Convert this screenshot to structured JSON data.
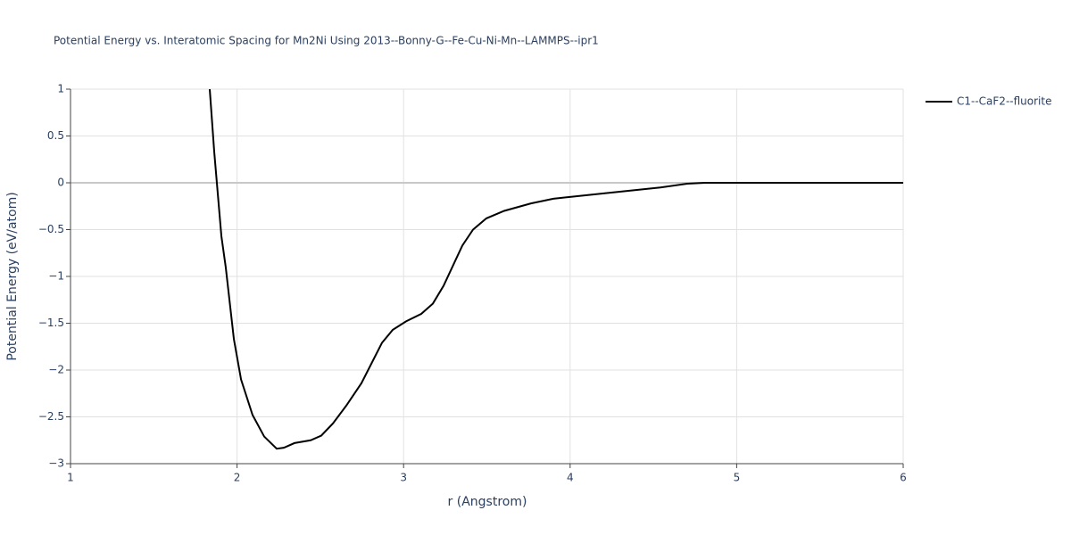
{
  "chart_data": {
    "type": "line",
    "title": "Potential Energy vs. Interatomic Spacing for Mn2Ni Using 2013--Bonny-G--Fe-Cu-Ni-Mn--LAMMPS--ipr1",
    "x_label": "r (Angstrom)",
    "y_label": "Potential Energy (eV/atom)",
    "xlim": [
      1,
      6
    ],
    "xticks": [
      1,
      2,
      3,
      4,
      5,
      6
    ],
    "ylim": [
      -3,
      1
    ],
    "yticks": [
      {
        "value": -3,
        "label": "−3"
      },
      {
        "value": -2.5,
        "label": "−2.5"
      },
      {
        "value": -2,
        "label": "−2"
      },
      {
        "value": -1.5,
        "label": "−1.5"
      },
      {
        "value": -1,
        "label": "−1"
      },
      {
        "value": -0.5,
        "label": "−0.5"
      },
      0,
      0.5,
      1
    ],
    "grid": true,
    "legend_position": "right",
    "series": [
      {
        "name": "C1--CaF2--fluorite",
        "color": "#000000",
        "x": [
          1.836,
          1.863,
          1.906,
          1.932,
          1.981,
          2.024,
          2.093,
          2.163,
          2.238,
          2.281,
          2.345,
          2.442,
          2.506,
          2.576,
          2.656,
          2.747,
          2.87,
          2.935,
          3.015,
          3.106,
          3.176,
          3.24,
          3.353,
          3.417,
          3.497,
          3.604,
          3.765,
          3.899,
          4.221,
          4.542,
          4.703,
          4.81,
          6.0
        ],
        "values": [
          1.0,
          0.33,
          -0.57,
          -0.9,
          -1.67,
          -2.1,
          -2.48,
          -2.71,
          -2.84,
          -2.83,
          -2.78,
          -2.75,
          -2.7,
          -2.57,
          -2.38,
          -2.14,
          -1.71,
          -1.57,
          -1.48,
          -1.4,
          -1.29,
          -1.1,
          -0.67,
          -0.5,
          -0.38,
          -0.3,
          -0.22,
          -0.17,
          -0.11,
          -0.05,
          -0.01,
          0,
          0
        ]
      }
    ]
  }
}
